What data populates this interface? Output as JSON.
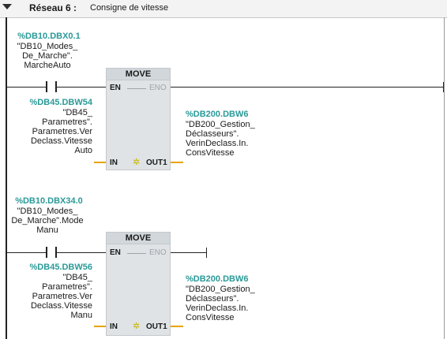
{
  "network": {
    "title": "Réseau 6 :",
    "comment": "Consigne de vitesse"
  },
  "rungs": [
    {
      "contact": {
        "address": "%DB10.DBX0.1",
        "symbol": "\"DB10_Modes_\nDe_Marche\".\nMarcheAuto"
      },
      "block": {
        "name": "MOVE",
        "en": "EN",
        "eno": "ENO",
        "in": "IN",
        "out": "OUT1"
      },
      "input": {
        "address": "%DB45.DBW54",
        "symbol": "\"DB45_\nParametres\".\nParametres.Ver\nDeclass.Vitesse\nAuto"
      },
      "output": {
        "address": "%DB200.DBW6",
        "symbol": "\"DB200_Gestion_\nDéclasseurs\".\nVerinDeclass.In.\nConsVitesse"
      }
    },
    {
      "contact": {
        "address": "%DB10.DBX34.0",
        "symbol": "\"DB10_Modes_\nDe_Marche\".Mode\nManu"
      },
      "block": {
        "name": "MOVE",
        "en": "EN",
        "eno": "ENO",
        "in": "IN",
        "out": "OUT1"
      },
      "input": {
        "address": "%DB45.DBW56",
        "symbol": "\"DB45_\nParametres\".\nParametres.Ver\nDeclass.Vitesse\nManu"
      },
      "output": {
        "address": "%DB200.DBW6",
        "symbol": "\"DB200_Gestion_\nDéclasseurs\".\nVerinDeclass.In.\nConsVitesse"
      }
    }
  ],
  "colors": {
    "address": "#2a9a98",
    "wire": "#222222",
    "link": "#e6a300",
    "box": "#dfe3e6"
  }
}
